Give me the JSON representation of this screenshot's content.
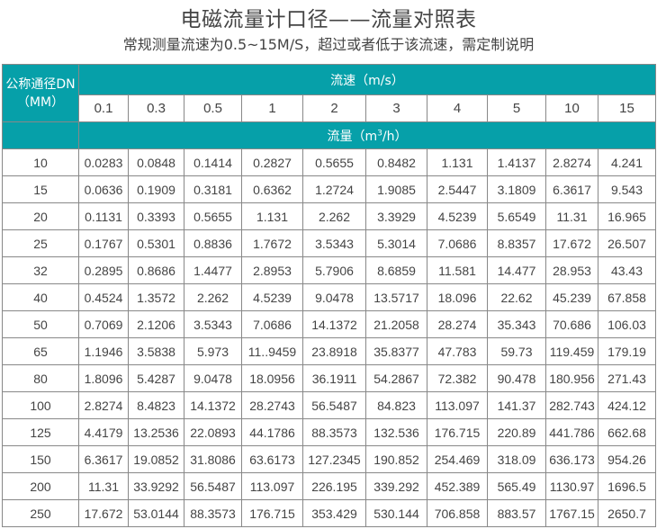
{
  "title": "电磁流量计口径——流量对照表",
  "subtitle": "常规测量流速为0.5~15M/S，超过或者低于该流速，需定制说明",
  "table": {
    "dn_header_line1": "公称通径DN",
    "dn_header_line2": "（MM）",
    "velocity_header": "流速（m/s）",
    "flow_header_prefix": "流量（m",
    "flow_header_sup": "3",
    "flow_header_suffix": "/h）",
    "velocities": [
      "0.1",
      "0.3",
      "0.5",
      "1",
      "2",
      "3",
      "4",
      "5",
      "10",
      "15"
    ],
    "rows": [
      {
        "dn": "10",
        "values": [
          "0.0283",
          "0.0848",
          "0.1414",
          "0.2827",
          "0.5655",
          "0.8482",
          "1.131",
          "1.4137",
          "2.8274",
          "4.241"
        ]
      },
      {
        "dn": "15",
        "values": [
          "0.0636",
          "0.1909",
          "0.3181",
          "0.6362",
          "1.2724",
          "1.9085",
          "2.5447",
          "3.1809",
          "6.3617",
          "9.543"
        ]
      },
      {
        "dn": "20",
        "values": [
          "0.1131",
          "0.3393",
          "0.5655",
          "1.131",
          "2.262",
          "3.3929",
          "4.5239",
          "5.6549",
          "11.31",
          "16.965"
        ]
      },
      {
        "dn": "25",
        "values": [
          "0.1767",
          "0.5301",
          "0.8836",
          "1.7672",
          "3.5343",
          "5.3014",
          "7.0686",
          "8.8357",
          "17.672",
          "26.507"
        ]
      },
      {
        "dn": "32",
        "values": [
          "0.2895",
          "0.8686",
          "1.4477",
          "2.8953",
          "5.7906",
          "8.6859",
          "11.581",
          "14.477",
          "28.953",
          "43.43"
        ]
      },
      {
        "dn": "40",
        "values": [
          "0.4524",
          "1.3572",
          "2.262",
          "4.5239",
          "9.0478",
          "13.5717",
          "18.096",
          "22.62",
          "45.239",
          "67.858"
        ]
      },
      {
        "dn": "50",
        "values": [
          "0.7069",
          "2.1206",
          "3.5343",
          "7.0686",
          "14.1372",
          "21.2058",
          "28.274",
          "35.343",
          "70.686",
          "106.03"
        ]
      },
      {
        "dn": "65",
        "values": [
          "1.1946",
          "3.5838",
          "5.973",
          "11..9459",
          "23.8918",
          "35.8377",
          "47.783",
          "59.73",
          "119.459",
          "179.19"
        ]
      },
      {
        "dn": "80",
        "values": [
          "1.8096",
          "5.4287",
          "9.0478",
          "18.0956",
          "36.1911",
          "54.2867",
          "72.382",
          "90.478",
          "180.956",
          "271.43"
        ]
      },
      {
        "dn": "100",
        "values": [
          "2.8274",
          "8.4823",
          "14.1372",
          "28.2743",
          "56.5487",
          "84.823",
          "113.097",
          "141.37",
          "282.743",
          "424.12"
        ]
      },
      {
        "dn": "125",
        "values": [
          "4.4179",
          "13.2536",
          "22.0893",
          "44.1786",
          "88.3573",
          "132.536",
          "176.715",
          "220.89",
          "441.786",
          "662.68"
        ]
      },
      {
        "dn": "150",
        "values": [
          "6.3617",
          "19.0852",
          "31.8086",
          "63.6173",
          "127.2345",
          "190.852",
          "254.469",
          "318.09",
          "636.173",
          "954.26"
        ]
      },
      {
        "dn": "200",
        "values": [
          "11.31",
          "33.9292",
          "56.5487",
          "113.097",
          "226.195",
          "339.292",
          "452.389",
          "565.49",
          "1130.97",
          "1696.5"
        ]
      },
      {
        "dn": "250",
        "values": [
          "17.672",
          "53.0144",
          "88.3573",
          "176.715",
          "353.429",
          "530.144",
          "706.858",
          "883.57",
          "1767.15",
          "2650.7"
        ]
      }
    ]
  },
  "colors": {
    "header_bg": "#06a0a9",
    "header_text": "#ffffff",
    "border": "#888888",
    "text": "#444444"
  }
}
